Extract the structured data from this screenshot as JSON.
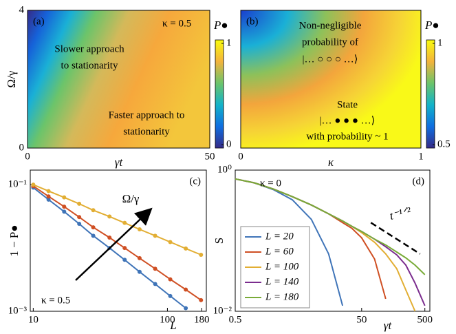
{
  "chart_data": [
    {
      "type": "heatmap",
      "label": "(a)",
      "xlabel": "γt",
      "ylabel": "Ω/γ",
      "xlim": [
        0,
        50
      ],
      "xticks": [
        0,
        50
      ],
      "ylim": [
        0,
        4
      ],
      "yticks": [
        0,
        4
      ],
      "colorbar_label": "P●",
      "colorbar_lim": [
        0,
        1
      ],
      "colorbar_ticks": [
        0,
        1
      ],
      "annotations": [
        "κ = 0.5",
        "Slower approach",
        "to stationarity",
        "Faster approach to",
        "stationarity"
      ]
    },
    {
      "type": "heatmap",
      "label": "(b)",
      "xlabel": "κ",
      "xlim": [
        0,
        1
      ],
      "xticks": [
        0,
        1
      ],
      "colorbar_label": "P●",
      "colorbar_lim": [
        0.5,
        1
      ],
      "colorbar_ticks": [
        0.5,
        1
      ],
      "annotations": [
        "Non-negligible",
        "probability of",
        "|… ○ ○ ○ …⟩",
        "State",
        "|… ● ● ● …⟩",
        "with probability ~ 1"
      ]
    },
    {
      "type": "line",
      "label": "(c)",
      "xlabel": "L",
      "ylabel": "1 − P●",
      "xscale": "log",
      "yscale": "log",
      "xlim": [
        9.5,
        195
      ],
      "xticks": [
        10,
        100,
        180
      ],
      "ylim": [
        0.001,
        0.17
      ],
      "yticks": [
        {
          "value": 0.001,
          "label": "10⁻³"
        },
        {
          "value": 0.1,
          "label": "10⁻¹"
        }
      ],
      "annotations": [
        "κ = 0.5"
      ],
      "arrow_label": "Ω/γ",
      "markers": true,
      "x": [
        10,
        13,
        17,
        22,
        28,
        37,
        48,
        62,
        81,
        105,
        137,
        178
      ],
      "series": [
        {
          "color": "#3f74b8",
          "values": [
            0.09,
            0.058,
            0.0375,
            0.0241,
            0.0156,
            0.01,
            0.0065,
            0.0042,
            0.0027,
            0.00174,
            0.00112,
            null
          ]
        },
        {
          "color": "#cf4f23",
          "values": [
            0.095,
            0.0653,
            0.0449,
            0.0308,
            0.0212,
            0.0146,
            0.01,
            0.0069,
            0.0047,
            0.0032,
            0.0022,
            0.0015
          ]
        },
        {
          "color": "#e2ae33",
          "values": [
            0.1,
            0.0793,
            0.0629,
            0.0499,
            0.0395,
            0.0314,
            0.0249,
            0.0197,
            0.0156,
            0.0124,
            0.0098,
            0.0078
          ]
        }
      ]
    },
    {
      "type": "line",
      "label": "(d)",
      "xlabel": "γt",
      "ylabel": "S",
      "xscale": "log",
      "yscale": "log",
      "xlim": [
        0.5,
        600
      ],
      "xticks": [
        0.5,
        50,
        500
      ],
      "ylim": [
        0.01,
        1
      ],
      "yticks": [
        {
          "value": 1,
          "label": "10⁰"
        },
        {
          "value": 0.01,
          "label": "10⁻²"
        }
      ],
      "annotations": [
        "κ = 0"
      ],
      "markers": false,
      "x": [
        0.5,
        1,
        2,
        4,
        8,
        15,
        25,
        35,
        50,
        80,
        120,
        180,
        250,
        350,
        500
      ],
      "series": [
        {
          "name": "L = 20",
          "color": "#3f74b8",
          "values": [
            0.75,
            0.66,
            0.53,
            0.38,
            0.2,
            0.065,
            0.012,
            null,
            null,
            null,
            null,
            null,
            null,
            null,
            null
          ]
        },
        {
          "name": "L = 60",
          "color": "#cf4f23",
          "values": [
            0.75,
            0.66,
            0.54,
            0.42,
            0.32,
            0.24,
            0.18,
            0.15,
            0.11,
            0.055,
            0.015,
            null,
            null,
            null,
            null
          ]
        },
        {
          "name": "L = 100",
          "color": "#e2ae33",
          "values": [
            0.75,
            0.66,
            0.54,
            0.42,
            0.32,
            0.24,
            0.19,
            0.16,
            0.13,
            0.095,
            0.065,
            0.04,
            0.02,
            0.01,
            null
          ]
        },
        {
          "name": "L = 140",
          "color": "#7b2d8e",
          "values": [
            0.75,
            0.66,
            0.54,
            0.42,
            0.32,
            0.24,
            0.19,
            0.16,
            0.135,
            0.105,
            0.082,
            0.063,
            0.045,
            0.025,
            0.012
          ]
        },
        {
          "name": "L = 180",
          "color": "#79ab38",
          "values": [
            0.75,
            0.66,
            0.54,
            0.42,
            0.32,
            0.24,
            0.19,
            0.16,
            0.135,
            0.105,
            0.087,
            0.069,
            0.057,
            0.045,
            0.033
          ]
        }
      ],
      "reference_line": {
        "label": "t⁻¹ᐟ²",
        "x": [
          70,
          420
        ],
        "y": [
          0.18,
          0.065
        ]
      }
    }
  ]
}
